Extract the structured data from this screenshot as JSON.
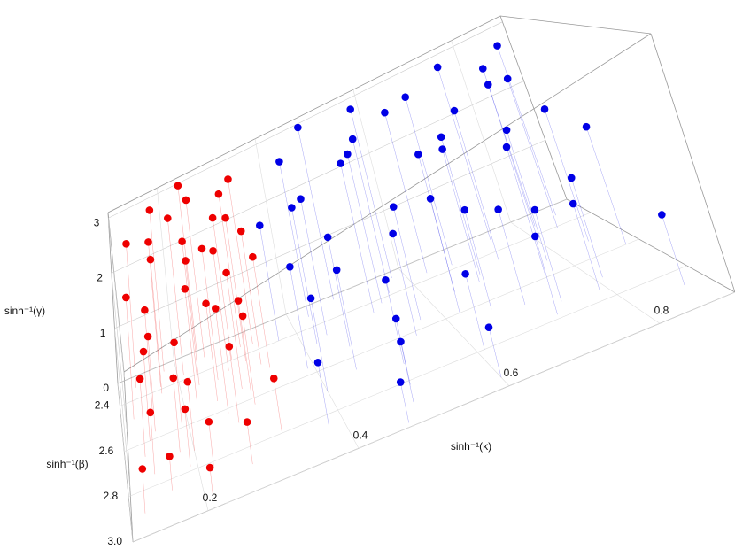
{
  "chart_data": {
    "type": "scatter3d",
    "x_label": "sinh⁻¹(κ)",
    "y_label": "sinh⁻¹(β)",
    "z_label": "sinh⁻¹(γ)",
    "xlim": [
      0.1,
      0.9
    ],
    "xticks": [
      0.2,
      0.4,
      0.6,
      0.8
    ],
    "ylim": [
      2.3,
      3.0
    ],
    "yticks": [
      2.4,
      2.6,
      2.8,
      {
        "value": 3.0,
        "label": "3.0"
      }
    ],
    "zlim": [
      0,
      3.1
    ],
    "zticks": [
      0,
      1,
      2,
      3
    ],
    "grid": true,
    "series": [
      {
        "color": "#ee0000",
        "x": [
          0.13,
          0.15,
          0.17,
          0.12,
          0.19,
          0.21,
          0.14,
          0.23,
          0.25,
          0.18,
          0.27,
          0.29,
          0.16,
          0.22,
          0.31,
          0.33,
          0.2,
          0.26,
          0.24,
          0.3,
          0.13,
          0.28,
          0.32,
          0.17,
          0.21,
          0.34,
          0.15,
          0.25,
          0.19,
          0.3,
          0.23,
          0.27,
          0.12,
          0.33,
          0.18,
          0.29,
          0.22,
          0.26,
          0.14,
          0.31
        ],
        "y": [
          2.35,
          2.5,
          2.42,
          2.9,
          2.6,
          2.38,
          2.75,
          2.45,
          2.55,
          2.33,
          2.68,
          2.4,
          2.85,
          2.52,
          2.36,
          2.47,
          2.72,
          2.62,
          2.31,
          2.58,
          2.66,
          2.44,
          2.8,
          2.39,
          2.95,
          2.5,
          2.57,
          2.34,
          2.78,
          2.63,
          2.41,
          2.88,
          2.48,
          2.37,
          2.7,
          2.54,
          2.83,
          2.46,
          2.6,
          2.43
        ],
        "z": [
          2.6,
          1.9,
          2.4,
          0.8,
          1.5,
          2.8,
          1.1,
          2.2,
          1.7,
          2.9,
          1.3,
          2.5,
          0.6,
          2.0,
          2.7,
          2.3,
          1.2,
          1.8,
          3.0,
          1.6,
          1.4,
          2.1,
          0.9,
          2.6,
          0.5,
          1.9,
          1.7,
          2.8,
          1.0,
          1.5,
          2.4,
          0.7,
          2.2,
          2.9,
          1.3,
          2.0,
          0.8,
          2.3,
          1.6,
          2.5
        ]
      },
      {
        "color": "#0000e6",
        "x": [
          0.37,
          0.4,
          0.43,
          0.46,
          0.49,
          0.52,
          0.55,
          0.58,
          0.61,
          0.64,
          0.67,
          0.7,
          0.73,
          0.76,
          0.79,
          0.82,
          0.85,
          0.88,
          0.38,
          0.42,
          0.45,
          0.48,
          0.51,
          0.54,
          0.57,
          0.6,
          0.63,
          0.66,
          0.69,
          0.72,
          0.75,
          0.78,
          0.81,
          0.84,
          0.87,
          0.39,
          0.44,
          0.5,
          0.56,
          0.62,
          0.68,
          0.74,
          0.8,
          0.86,
          0.47
        ],
        "y": [
          2.4,
          2.7,
          2.35,
          2.55,
          2.9,
          2.45,
          2.62,
          2.33,
          2.8,
          2.5,
          2.38,
          2.68,
          2.44,
          2.58,
          2.75,
          2.36,
          2.52,
          2.6,
          2.85,
          2.48,
          2.66,
          2.32,
          2.72,
          2.42,
          2.56,
          2.95,
          2.37,
          2.64,
          2.47,
          2.78,
          2.34,
          2.53,
          2.7,
          2.41,
          2.88,
          2.57,
          2.46,
          2.82,
          2.39,
          2.61,
          2.5,
          2.73,
          2.43,
          2.35,
          2.98
        ],
        "z": [
          2.0,
          1.5,
          2.7,
          1.8,
          0.9,
          2.5,
          1.6,
          2.9,
          1.1,
          2.2,
          2.8,
          1.4,
          2.4,
          1.9,
          1.2,
          2.6,
          2.0,
          1.7,
          1.0,
          2.3,
          1.6,
          3.0,
          1.3,
          2.5,
          1.8,
          0.7,
          2.7,
          1.5,
          2.2,
          1.1,
          2.9,
          2.0,
          1.4,
          2.4,
          0.9,
          1.7,
          2.3,
          1.0,
          2.6,
          1.8,
          2.1,
          1.3,
          2.5,
          2.8,
          0.6
        ]
      }
    ]
  }
}
